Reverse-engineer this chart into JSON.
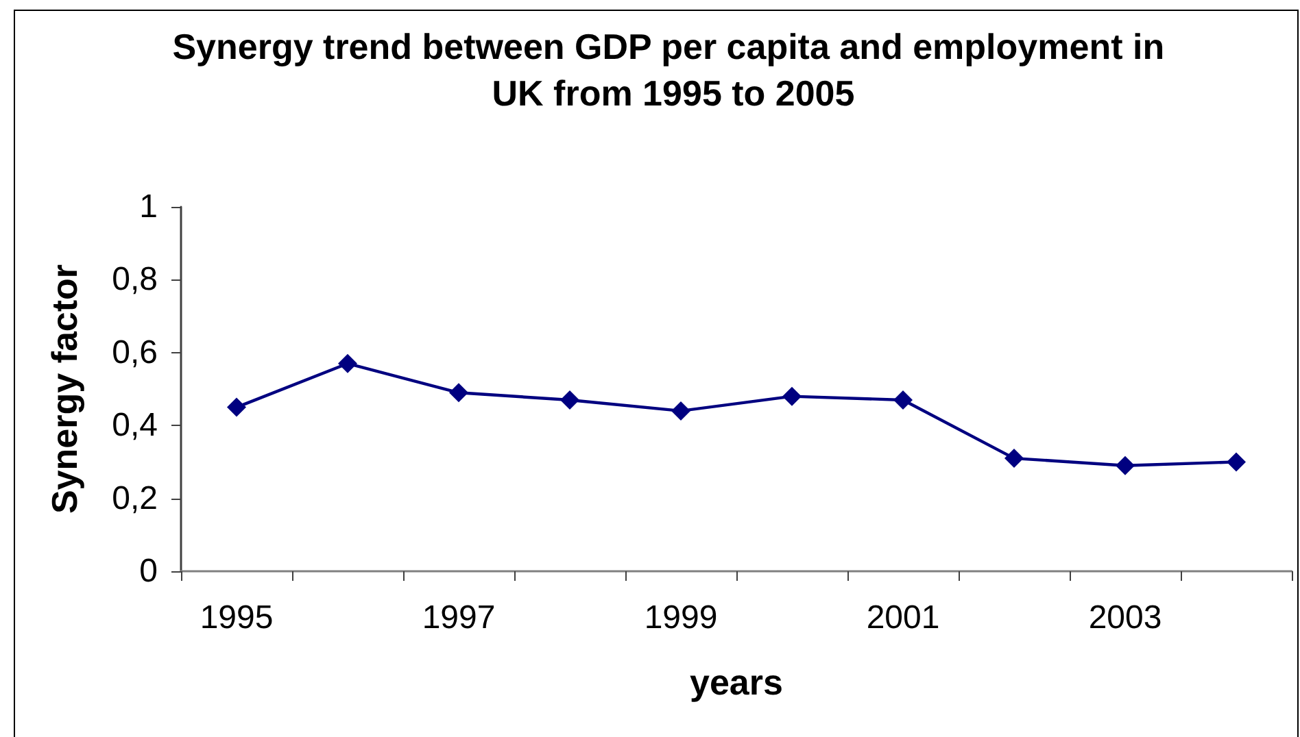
{
  "chart_data": {
    "type": "line",
    "title": "Synergy trend between GDP per capita and employment in UK from 1995 to 2005",
    "xlabel": "years",
    "ylabel": "Synergy factor",
    "categories": [
      "1995",
      null,
      "1997",
      null,
      "1999",
      null,
      "2001",
      null,
      "2003",
      null
    ],
    "series": [
      {
        "color": "#000080",
        "values": [
          0.45,
          0.57,
          0.49,
          0.47,
          0.44,
          0.48,
          0.47,
          0.31,
          0.29,
          0.3
        ]
      }
    ],
    "ylim": [
      0,
      1
    ],
    "yticks": [
      0,
      {
        "value": 0.2,
        "label": "0,2"
      },
      {
        "value": 0.4,
        "label": "0,4"
      },
      {
        "value": 0.6,
        "label": "0,6"
      },
      {
        "value": 0.8,
        "label": "0,8"
      },
      1
    ],
    "grid": false,
    "marker": "diamond",
    "line_style": "solid"
  }
}
